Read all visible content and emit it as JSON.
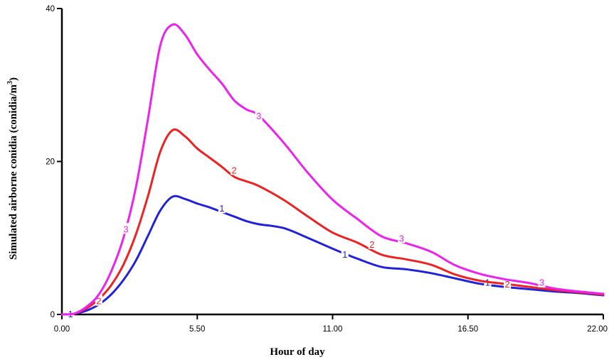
{
  "chart_data": {
    "type": "line",
    "title": "",
    "xlabel": "Hour  of day",
    "ylabel_main": "Simulated airborne conidia (conidia/m",
    "ylabel_sup": "3",
    "ylabel_tail": ")",
    "xlim": [
      0,
      22
    ],
    "ylim": [
      0,
      40
    ],
    "x_ticks": [
      0,
      5.5,
      11,
      16.5,
      22
    ],
    "x_tick_labels": [
      "0.00",
      "5.50",
      "11.00",
      "16.50",
      "22.00"
    ],
    "y_ticks": [
      0,
      20,
      40
    ],
    "y_tick_labels": [
      "0",
      "20",
      "40"
    ],
    "grid": false,
    "series": [
      {
        "name": "1",
        "color": "#2222dd",
        "x": [
          0,
          0.5,
          1,
          1.5,
          2,
          2.5,
          3,
          3.5,
          4,
          4.5,
          5,
          5.5,
          6,
          6.5,
          7,
          7.5,
          8,
          9,
          10,
          11,
          12,
          13,
          14,
          15,
          16,
          17,
          18,
          19,
          20,
          21,
          22
        ],
        "y": [
          0,
          0.1,
          0.5,
          1.3,
          2.6,
          4.5,
          7.0,
          10.3,
          13.6,
          15.4,
          15.1,
          14.5,
          14.0,
          13.4,
          12.8,
          12.2,
          11.8,
          11.3,
          10.0,
          8.6,
          7.3,
          6.2,
          5.9,
          5.4,
          4.7,
          4.0,
          3.6,
          3.3,
          3.0,
          2.8,
          2.5
        ],
        "labels": [
          {
            "text": "1",
            "x": 0.35,
            "y": 0.1
          },
          {
            "text": "1",
            "x": 6.5,
            "y": 13.9
          },
          {
            "text": "1",
            "x": 11.5,
            "y": 7.9
          },
          {
            "text": "1",
            "x": 17.3,
            "y": 4.2
          }
        ]
      },
      {
        "name": "2",
        "color": "#ee2222",
        "x": [
          0,
          0.5,
          1,
          1.5,
          2,
          2.5,
          3,
          3.5,
          4,
          4.5,
          5,
          5.5,
          6,
          6.5,
          7,
          7.5,
          8,
          9,
          10,
          11,
          12,
          13,
          14,
          15,
          16,
          17,
          18,
          19,
          20,
          21,
          22
        ],
        "y": [
          0,
          0.1,
          0.8,
          2.0,
          3.8,
          6.5,
          10.4,
          15.5,
          21.3,
          24.1,
          23.3,
          21.7,
          20.5,
          19.3,
          18.0,
          17.4,
          16.8,
          15.0,
          12.8,
          10.7,
          9.4,
          7.8,
          7.2,
          6.5,
          5.2,
          4.4,
          4.0,
          3.6,
          3.2,
          2.9,
          2.6
        ],
        "labels": [
          {
            "text": "2",
            "x": 1.5,
            "y": 1.8
          },
          {
            "text": "2",
            "x": 7.0,
            "y": 18.9
          },
          {
            "text": "2",
            "x": 12.6,
            "y": 9.2
          },
          {
            "text": "2",
            "x": 18.1,
            "y": 4.0
          }
        ]
      },
      {
        "name": "3",
        "color": "#ee22ee",
        "x": [
          0,
          0.5,
          1,
          1.5,
          2,
          2.5,
          3,
          3.5,
          4,
          4.5,
          5,
          5.5,
          6,
          6.5,
          7,
          7.5,
          8,
          9,
          10,
          11,
          12,
          13,
          14,
          15,
          16,
          17,
          18,
          19,
          20,
          21,
          22
        ],
        "y": [
          0,
          0.1,
          1.0,
          2.6,
          5.6,
          10.0,
          16.5,
          25.6,
          35.2,
          37.9,
          36.6,
          34.0,
          32.0,
          30.2,
          28.0,
          26.8,
          26.0,
          22.5,
          18.5,
          15.0,
          12.5,
          10.2,
          9.3,
          8.2,
          6.4,
          5.3,
          4.6,
          4.1,
          3.4,
          3.0,
          2.7
        ],
        "labels": [
          {
            "text": "3",
            "x": 2.6,
            "y": 11.2
          },
          {
            "text": "3",
            "x": 8.0,
            "y": 26.0
          },
          {
            "text": "3",
            "x": 13.8,
            "y": 10.0
          },
          {
            "text": "3",
            "x": 19.5,
            "y": 4.2
          }
        ]
      }
    ]
  }
}
